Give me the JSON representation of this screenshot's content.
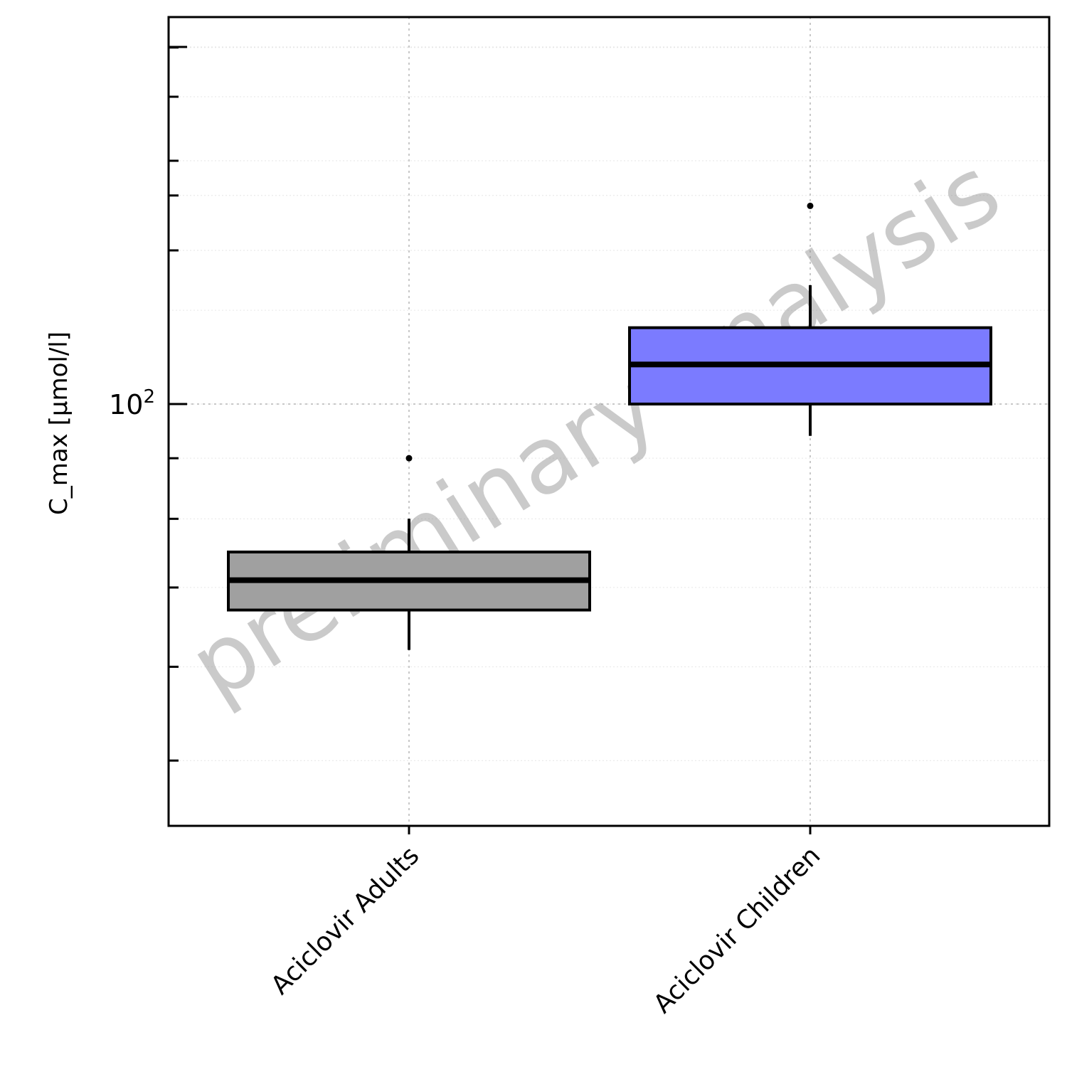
{
  "chart_data": {
    "type": "box",
    "ylabel": "C_max [µmol/l]",
    "y_scale": "log",
    "ylim": [
      40,
      250
    ],
    "y_tick_labels": [
      {
        "value": 100,
        "base": "10",
        "exponent": "2"
      }
    ],
    "categories": [
      "Aciclovir Adults",
      "Aciclovir Children"
    ],
    "boxes": [
      {
        "name": "Aciclovir Adults",
        "whisker_low": 62,
        "q1": 67,
        "median": 71,
        "q3": 75,
        "whisker_high": 80,
        "outliers": [
          90
        ],
        "fill": "#a0a0a0"
      },
      {
        "name": "Aciclovir Children",
        "whisker_low": 94,
        "q1": 100,
        "median": 108,
        "q3": 116,
        "whisker_high": 126,
        "outliers": [
          147
        ],
        "fill": "#7b7bff"
      }
    ],
    "grid": true,
    "watermark": "preliminary analysis"
  }
}
